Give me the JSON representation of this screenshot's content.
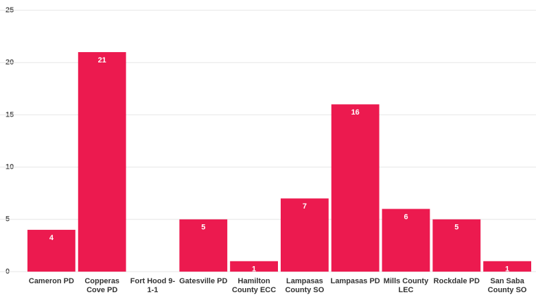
{
  "chart_data": {
    "type": "bar",
    "categories": [
      "Cameron PD",
      "Copperas Cove PD",
      "Fort Hood 9-1-1",
      "Gatesville PD",
      "Hamilton County ECC",
      "Lampasas County SO",
      "Lampasas PD",
      "Mills County LEC",
      "Rockdale PD",
      "San Saba County SO"
    ],
    "values": [
      4,
      21,
      0,
      5,
      1,
      7,
      16,
      6,
      5,
      1
    ],
    "color": "#ec1a4f",
    "ylim": [
      0,
      25
    ],
    "yticks": [
      0,
      5,
      10,
      15,
      20,
      25
    ],
    "grid": true
  }
}
